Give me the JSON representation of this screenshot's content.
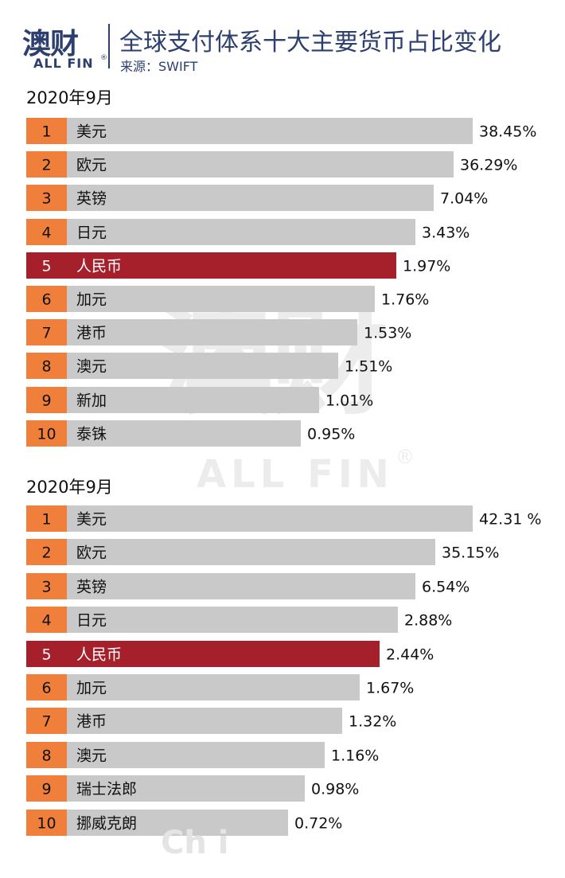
{
  "header": {
    "logo_cn": "澳财",
    "logo_en": "ALL FIN",
    "logo_reg": "®",
    "title": "全球支付体系十大主要货币占比变化",
    "source": "来源：SWIFT"
  },
  "watermark": {
    "cn": "澳财",
    "en": "ALL FIN",
    "reg": "®"
  },
  "footer_partial_text": "Ch i",
  "colors": {
    "rank_box": "#ef7f3a",
    "bar": "#c9c9c9",
    "highlight": "#a6202c",
    "brand": "#2c3f6e"
  },
  "chart_data": [
    {
      "type": "bar",
      "title": "2020年9月",
      "categories": [
        "美元",
        "欧元",
        "英镑",
        "日元",
        "人民币",
        "加元",
        "港币",
        "澳元",
        "新加",
        "泰铢"
      ],
      "ranks": [
        "1",
        "2",
        "3",
        "4",
        "5",
        "6",
        "7",
        "8",
        "9",
        "10"
      ],
      "values": [
        38.45,
        36.29,
        7.04,
        3.43,
        1.97,
        1.76,
        1.53,
        1.51,
        1.01,
        0.95
      ],
      "value_labels": [
        "38.45%",
        "36.29%",
        "7.04%",
        "3.43%",
        "1.97%",
        "1.76%",
        "1.53%",
        "1.51%",
        "1.01%",
        "0.95%"
      ],
      "highlight_index": 4
    },
    {
      "type": "bar",
      "title": "2020年9月",
      "categories": [
        "美元",
        "欧元",
        "英镑",
        "日元",
        "人民币",
        "加元",
        "港币",
        "澳元",
        "瑞士法郎",
        "挪威克朗"
      ],
      "ranks": [
        "1",
        "2",
        "3",
        "4",
        "5",
        "6",
        "7",
        "8",
        "9",
        "10"
      ],
      "values": [
        42.31,
        35.15,
        6.54,
        2.88,
        2.44,
        1.67,
        1.32,
        1.16,
        0.98,
        0.72
      ],
      "value_labels": [
        "42.31 %",
        "35.15%",
        "6.54%",
        "2.88%",
        "2.44%",
        "1.67%",
        "1.32%",
        "1.16%",
        "0.98%",
        "0.72%"
      ],
      "highlight_index": 4
    }
  ]
}
